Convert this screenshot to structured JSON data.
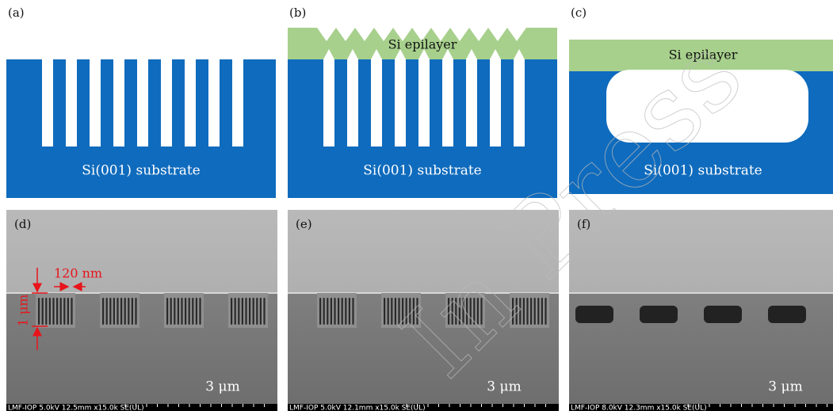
{
  "panels": [
    {
      "label": "(a)",
      "substrate": "Si(001) substrate"
    },
    {
      "label": "(b)",
      "epilayer": "Si epilayer",
      "substrate": "Si(001) substrate"
    },
    {
      "label": "(c)",
      "epilayer": "Si epilayer",
      "substrate": "Si(001) substrate"
    },
    {
      "label": "(d)",
      "scale": "3 μm",
      "footer": "LMF-IOP 5.0kV 12.5mm x15.0k SE(UL)",
      "width_note": "120 nm",
      "depth_note": "1 μm"
    },
    {
      "label": "(e)",
      "scale": "3 μm",
      "footer": "LMF-IOP 5.0kV 12.1mm x15.0k SE(UL)"
    },
    {
      "label": "(f)",
      "scale": "3 μm",
      "footer": "LMF-IOP 8.0kV 12.3mm x15.0k SE(UL)"
    }
  ],
  "watermark": "In Press"
}
